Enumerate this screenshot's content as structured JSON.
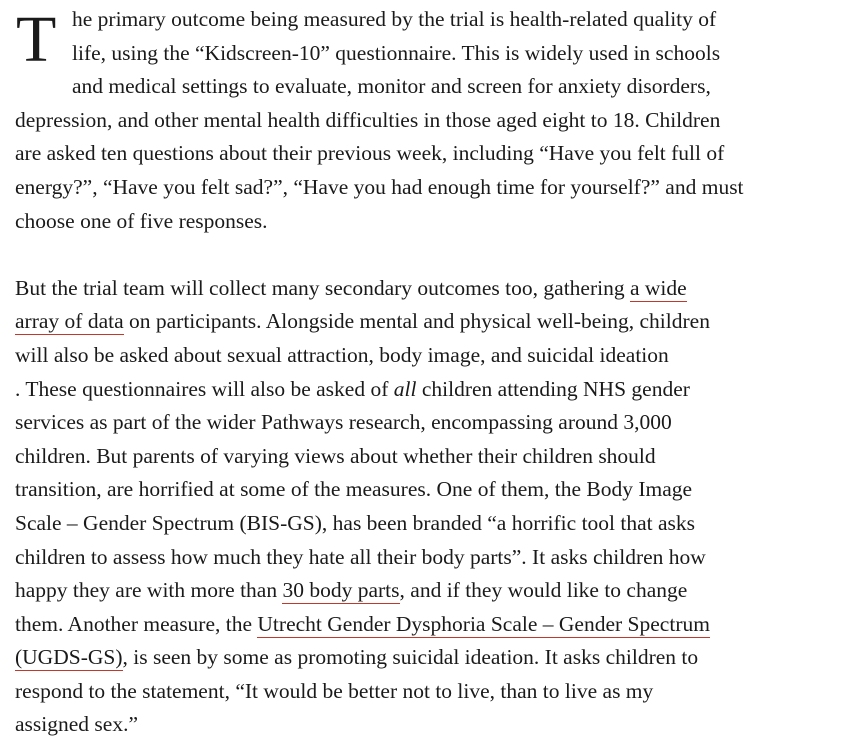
{
  "article": {
    "drop_cap": "T",
    "paragraph1": [
      [
        {
          "t": "he primary outcome being measured by the trial is health-related quality of"
        }
      ],
      [
        {
          "t": "life, using the “Kidscreen-10” questionnaire. This is widely used in schools"
        }
      ],
      [
        {
          "t": "and medical settings to evaluate, monitor and screen for anxiety disorders,"
        }
      ],
      [
        {
          "t": "depression, and other mental health difficulties in those aged eight to 18. Children"
        }
      ],
      [
        {
          "t": "are asked ten questions about their previous week, including “Have you felt full of"
        }
      ],
      [
        {
          "t": "energy?”, “Have you felt sad?”, “Have you had enough time for yourself?” and must"
        }
      ],
      [
        {
          "t": "choose one of five responses."
        }
      ]
    ],
    "paragraph2": [
      [
        {
          "t": "But the trial team will collect many secondary outcomes too, gathering "
        },
        {
          "t": "a wide",
          "link": true
        }
      ],
      [
        {
          "t": "array of data",
          "link": true
        },
        {
          "t": " on participants. Alongside mental and physical well-being, children"
        }
      ],
      [
        {
          "t": "will also be asked about sexual attraction, body image, and suicidal ideation"
        }
      ],
      [
        {
          "t": ". These questionnaires will also be asked of "
        },
        {
          "t": "all",
          "em": true
        },
        {
          "t": " children attending NHS gender"
        }
      ],
      [
        {
          "t": "services as part of the wider Pathways research, encompassing around 3,000"
        }
      ],
      [
        {
          "t": "children. But parents of varying views about whether their children should"
        }
      ],
      [
        {
          "t": "transition, are horrified at some of the measures. One of them, the Body Image"
        }
      ],
      [
        {
          "t": "Scale – Gender Spectrum (BIS-GS), has been branded “a horrific tool that asks"
        }
      ],
      [
        {
          "t": "children to assess how much they hate all their body parts”. It asks children how"
        }
      ],
      [
        {
          "t": "happy they are with more than "
        },
        {
          "t": "30 body parts",
          "link": true
        },
        {
          "t": ", and if they would like to change"
        }
      ],
      [
        {
          "t": "them. Another measure, the "
        },
        {
          "t": "Utrecht Gender Dysphoria Scale – Gender Spectrum",
          "link": true
        }
      ],
      [
        {
          "t": "(UGDS-GS)",
          "link": true
        },
        {
          "t": ", is seen by some as promoting suicidal ideation. It asks children to"
        }
      ],
      [
        {
          "t": "respond to the statement, “It would be better not to live, than to live as my"
        }
      ],
      [
        {
          "t": "assigned sex.”"
        }
      ]
    ],
    "link_underline_color": "#c0392b"
  }
}
